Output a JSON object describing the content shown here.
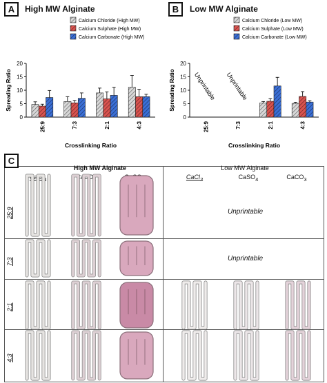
{
  "panels": {
    "A": {
      "tag": "A",
      "title": "High MW Alginate"
    },
    "B": {
      "tag": "B",
      "title": "Low MW Alginate"
    },
    "C": {
      "tag": "C"
    }
  },
  "colors": {
    "chloride": "#d8d8d8",
    "sulphate": "#d9534f",
    "carbonate": "#3b6fd6",
    "hatch": "#333333"
  },
  "chart_data": [
    {
      "type": "bar",
      "title": "High MW Alginate",
      "xlabel": "Crosslinking Ratio",
      "ylabel": "Spreading Ratio",
      "ylim": [
        0,
        20
      ],
      "yticks": [
        0,
        5,
        10,
        15,
        20
      ],
      "categories": [
        "25:9",
        "7:3",
        "2:1",
        "4:3"
      ],
      "legend_position": "top-right",
      "series": [
        {
          "name": "Calcium Chloride (High MW)",
          "values": [
            4.7,
            5.8,
            9.0,
            11.1
          ],
          "errors": [
            1.0,
            1.8,
            1.8,
            4.4
          ]
        },
        {
          "name": "Calcium Sulphate (High MW)",
          "values": [
            4.1,
            5.3,
            6.8,
            7.6
          ],
          "errors": [
            0.7,
            0.9,
            2.6,
            2.8
          ]
        },
        {
          "name": "Calcium Carbonate (High MW)",
          "values": [
            7.3,
            7.0,
            8.1,
            7.6
          ],
          "errors": [
            2.6,
            2.0,
            3.0,
            0.9
          ]
        }
      ]
    },
    {
      "type": "bar",
      "title": "Low MW Alginate",
      "xlabel": "Crosslinking Ratio",
      "ylabel": "Spreading Ratio",
      "ylim": [
        0,
        20
      ],
      "yticks": [
        0,
        5,
        10,
        15,
        20
      ],
      "categories": [
        "25:9",
        "7:3",
        "2:1",
        "4:3"
      ],
      "legend_position": "top-right",
      "annotations": [
        "Unprintable",
        "Unprintable"
      ],
      "series": [
        {
          "name": "Calcium Chloride (Low MW)",
          "values": [
            null,
            null,
            5.3,
            5.1
          ],
          "errors": [
            null,
            null,
            0.5,
            0.4
          ]
        },
        {
          "name": "Calcium Sulphate (Low MW)",
          "values": [
            null,
            null,
            5.9,
            7.7
          ],
          "errors": [
            null,
            null,
            1.0,
            1.8
          ]
        },
        {
          "name": "Calcium Carbonate (Low MW)",
          "values": [
            null,
            null,
            11.6,
            5.6
          ],
          "errors": [
            null,
            null,
            3.2,
            0.5
          ]
        }
      ]
    }
  ],
  "grid": {
    "high_header": "High MW Alginate",
    "low_header": "Low MW Alginate",
    "col_labels": [
      "CaCl2",
      "CaSO4",
      "CaCO3"
    ],
    "rows": [
      "25:9",
      "7:3",
      "2:1",
      "4:3"
    ],
    "unprintable": "Unprintable"
  }
}
